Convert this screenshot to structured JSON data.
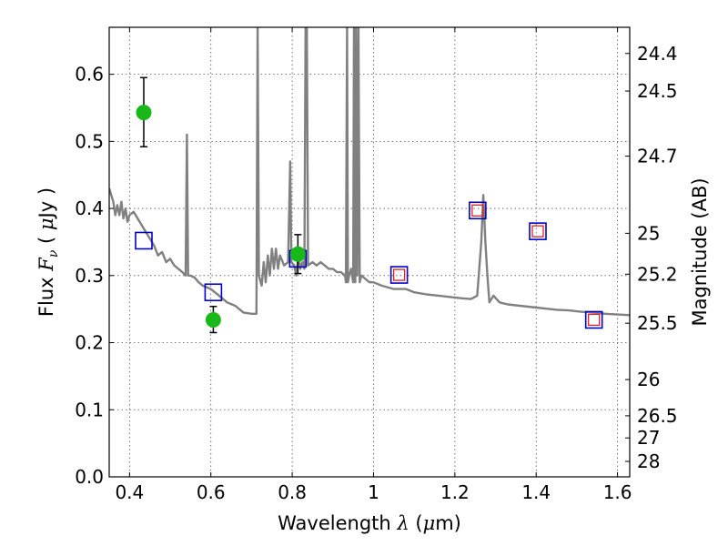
{
  "chart_data": {
    "type": "scatter",
    "xlabel": "Wavelength  λ (μm)",
    "ylabel": "Flux  F_ν  ( μJy )",
    "ylabel_right": "Magnitude (AB)",
    "xlim": [
      0.35,
      1.63
    ],
    "ylim": [
      0.0,
      0.67
    ],
    "grid": true,
    "x_ticks": [
      0.4,
      0.6,
      0.8,
      1.0,
      1.2,
      1.4,
      1.6
    ],
    "x_tick_labels": [
      "0.4",
      "0.6",
      "0.8",
      "1",
      "1.2",
      "1.4",
      "1.6"
    ],
    "y_ticks": [
      0.0,
      0.1,
      0.2,
      0.3,
      0.4,
      0.5,
      0.6
    ],
    "y_tick_labels": [
      "0.0",
      "0.1",
      "0.2",
      "0.3",
      "0.4",
      "0.5",
      "0.6"
    ],
    "right_ticks": [
      {
        "label": "24.4",
        "flux": 0.631
      },
      {
        "label": "24.5",
        "flux": 0.575
      },
      {
        "label": "24.7",
        "flux": 0.478
      },
      {
        "label": "25",
        "flux": 0.363
      },
      {
        "label": "25.2",
        "flux": 0.302
      },
      {
        "label": "25.5",
        "flux": 0.229
      },
      {
        "label": "26",
        "flux": 0.145
      },
      {
        "label": "26.5",
        "flux": 0.091
      },
      {
        "label": "27",
        "flux": 0.058
      },
      {
        "label": "28",
        "flux": 0.023
      }
    ],
    "series": [
      {
        "kind": "errorbar-circle",
        "color": "#18b818",
        "points": [
          {
            "x": 0.435,
            "y": 0.543,
            "ylo": 0.492,
            "yhi": 0.595
          },
          {
            "x": 0.606,
            "y": 0.234,
            "ylo": 0.215,
            "yhi": 0.254
          },
          {
            "x": 0.814,
            "y": 0.332,
            "ylo": 0.303,
            "yhi": 0.361
          }
        ]
      },
      {
        "kind": "square-blue",
        "color": "#0000cc",
        "points": [
          {
            "x": 0.435,
            "y": 0.352
          },
          {
            "x": 0.606,
            "y": 0.275
          },
          {
            "x": 0.814,
            "y": 0.325
          },
          {
            "x": 1.063,
            "y": 0.301
          },
          {
            "x": 1.256,
            "y": 0.397
          },
          {
            "x": 1.404,
            "y": 0.366
          },
          {
            "x": 1.542,
            "y": 0.234
          }
        ]
      },
      {
        "kind": "square-red",
        "color": "#dd2222",
        "points": [
          {
            "x": 1.063,
            "y": 0.301
          },
          {
            "x": 1.256,
            "y": 0.397
          },
          {
            "x": 1.404,
            "y": 0.366
          },
          {
            "x": 1.542,
            "y": 0.234
          }
        ]
      },
      {
        "kind": "spectrum-line",
        "color": "#808080",
        "points": [
          [
            0.35,
            0.43
          ],
          [
            0.36,
            0.41
          ],
          [
            0.365,
            0.39
          ],
          [
            0.37,
            0.405
          ],
          [
            0.375,
            0.39
          ],
          [
            0.38,
            0.41
          ],
          [
            0.385,
            0.385
          ],
          [
            0.39,
            0.4
          ],
          [
            0.395,
            0.38
          ],
          [
            0.4,
            0.39
          ],
          [
            0.41,
            0.395
          ],
          [
            0.42,
            0.385
          ],
          [
            0.43,
            0.375
          ],
          [
            0.44,
            0.365
          ],
          [
            0.45,
            0.355
          ],
          [
            0.46,
            0.345
          ],
          [
            0.47,
            0.33
          ],
          [
            0.48,
            0.335
          ],
          [
            0.49,
            0.32
          ],
          [
            0.5,
            0.325
          ],
          [
            0.51,
            0.315
          ],
          [
            0.52,
            0.31
          ],
          [
            0.53,
            0.305
          ],
          [
            0.538,
            0.3
          ],
          [
            0.541,
            0.51
          ],
          [
            0.544,
            0.3
          ],
          [
            0.55,
            0.3
          ],
          [
            0.56,
            0.297
          ],
          [
            0.57,
            0.29
          ],
          [
            0.58,
            0.285
          ],
          [
            0.6,
            0.28
          ],
          [
            0.62,
            0.27
          ],
          [
            0.64,
            0.26
          ],
          [
            0.66,
            0.255
          ],
          [
            0.68,
            0.245
          ],
          [
            0.7,
            0.243
          ],
          [
            0.712,
            0.243
          ],
          [
            0.715,
            0.67
          ],
          [
            0.718,
            0.3
          ],
          [
            0.725,
            0.285
          ],
          [
            0.73,
            0.32
          ],
          [
            0.735,
            0.29
          ],
          [
            0.74,
            0.33
          ],
          [
            0.745,
            0.3
          ],
          [
            0.75,
            0.34
          ],
          [
            0.755,
            0.31
          ],
          [
            0.76,
            0.34
          ],
          [
            0.765,
            0.31
          ],
          [
            0.77,
            0.33
          ],
          [
            0.78,
            0.315
          ],
          [
            0.79,
            0.32
          ],
          [
            0.795,
            0.47
          ],
          [
            0.798,
            0.32
          ],
          [
            0.805,
            0.315
          ],
          [
            0.81,
            0.3
          ],
          [
            0.815,
            0.33
          ],
          [
            0.82,
            0.31
          ],
          [
            0.825,
            0.32
          ],
          [
            0.83,
            0.31
          ],
          [
            0.833,
            0.67
          ],
          [
            0.836,
            0.67
          ],
          [
            0.839,
            0.315
          ],
          [
            0.85,
            0.32
          ],
          [
            0.86,
            0.315
          ],
          [
            0.87,
            0.32
          ],
          [
            0.88,
            0.315
          ],
          [
            0.89,
            0.31
          ],
          [
            0.9,
            0.31
          ],
          [
            0.91,
            0.305
          ],
          [
            0.92,
            0.305
          ],
          [
            0.93,
            0.3
          ],
          [
            0.932,
            0.29
          ],
          [
            0.935,
            0.67
          ],
          [
            0.937,
            0.29
          ],
          [
            0.94,
            0.3
          ],
          [
            0.945,
            0.31
          ],
          [
            0.95,
            0.29
          ],
          [
            0.952,
            0.67
          ],
          [
            0.955,
            0.29
          ],
          [
            0.957,
            0.67
          ],
          [
            0.96,
            0.3
          ],
          [
            0.963,
            0.67
          ],
          [
            0.966,
            0.29
          ],
          [
            0.97,
            0.3
          ],
          [
            0.98,
            0.295
          ],
          [
            0.99,
            0.29
          ],
          [
            1.0,
            0.29
          ],
          [
            1.02,
            0.285
          ],
          [
            1.05,
            0.28
          ],
          [
            1.08,
            0.28
          ],
          [
            1.1,
            0.275
          ],
          [
            1.13,
            0.272
          ],
          [
            1.16,
            0.27
          ],
          [
            1.19,
            0.268
          ],
          [
            1.22,
            0.266
          ],
          [
            1.24,
            0.265
          ],
          [
            1.255,
            0.27
          ],
          [
            1.265,
            0.35
          ],
          [
            1.27,
            0.42
          ],
          [
            1.275,
            0.35
          ],
          [
            1.28,
            0.3
          ],
          [
            1.285,
            0.26
          ],
          [
            1.295,
            0.27
          ],
          [
            1.31,
            0.26
          ],
          [
            1.33,
            0.257
          ],
          [
            1.36,
            0.255
          ],
          [
            1.39,
            0.253
          ],
          [
            1.42,
            0.251
          ],
          [
            1.45,
            0.249
          ],
          [
            1.48,
            0.248
          ],
          [
            1.51,
            0.246
          ],
          [
            1.54,
            0.245
          ],
          [
            1.57,
            0.243
          ],
          [
            1.6,
            0.242
          ],
          [
            1.63,
            0.241
          ]
        ]
      }
    ]
  },
  "colors": {
    "spectrum": "#808080",
    "photometry": "#18b818",
    "model_square": "#0000cc",
    "observed_square": "#dd2222",
    "grid": "#555555"
  }
}
